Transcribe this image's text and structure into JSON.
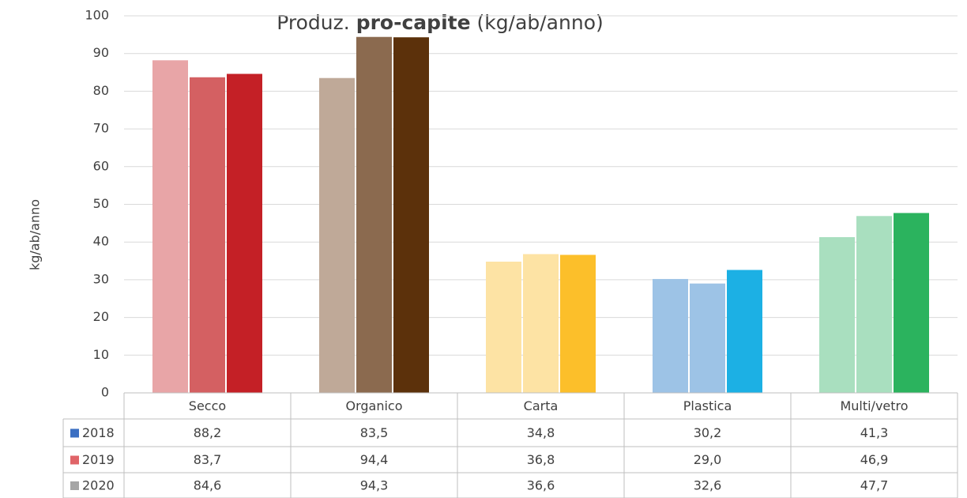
{
  "chart_data": {
    "type": "bar",
    "title": {
      "prefix": "Produz.",
      "bold": "pro-capite",
      "suffix": "(kg/ab/anno)"
    },
    "y_label": "kg/ab/anno",
    "categories": [
      "Secco",
      "Organico",
      "Carta",
      "Plastica",
      "Multi/vetro"
    ],
    "series": [
      {
        "name": "2018",
        "color": "#3b6fc2",
        "bar_colors": [
          "#e8a5a7",
          "#bfa998",
          "#fde3a4",
          "#9dc3e6",
          "#a9dfbf"
        ],
        "values": [
          88.2,
          83.5,
          34.8,
          30.2,
          41.3
        ],
        "value_labels": [
          "88,2",
          "83,5",
          "34,8",
          "30,2",
          "41,3"
        ]
      },
      {
        "name": "2019",
        "color": "#e06468",
        "bar_colors": [
          "#d46062",
          "#8b6a4f",
          "#fde3a4",
          "#9dc3e6",
          "#a9dfbf"
        ],
        "values": [
          83.7,
          94.4,
          36.8,
          29.0,
          46.9
        ],
        "value_labels": [
          "83,7",
          "94,4",
          "36,8",
          "29,0",
          "46,9"
        ]
      },
      {
        "name": "2020",
        "color": "#a5a5a5",
        "bar_colors": [
          "#c42026",
          "#5c310b",
          "#fcbf2a",
          "#1cb0e4",
          "#2bb35e"
        ],
        "values": [
          84.6,
          94.3,
          36.6,
          32.6,
          47.7
        ],
        "value_labels": [
          "84,6",
          "94,3",
          "36,6",
          "32,6",
          "47,7"
        ]
      }
    ],
    "ylim": [
      0,
      100
    ],
    "yticks": [
      0,
      10,
      20,
      30,
      40,
      50,
      60,
      70,
      80,
      90,
      100
    ],
    "grid": true
  }
}
